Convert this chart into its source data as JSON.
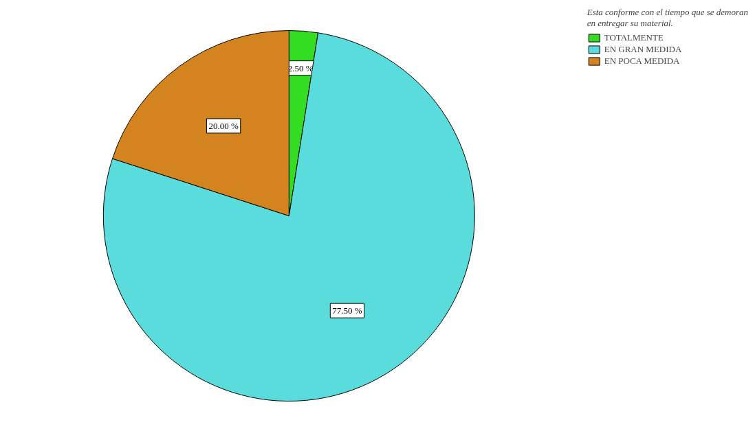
{
  "chart_data": {
    "type": "pie",
    "legend_title": "Esta conforme con el tiempo que se demoran\nen entregar su material.",
    "categories": [
      "TOTALMENTE",
      "EN GRAN MEDIDA",
      "EN POCA MEDIDA"
    ],
    "values": [
      2.5,
      77.5,
      20.0
    ],
    "colors": [
      "#33dd22",
      "#5adcdc",
      "#d4841e"
    ],
    "value_labels": [
      "2.50 %",
      "77.50 %",
      "20.00 %"
    ],
    "legend": "top right"
  }
}
